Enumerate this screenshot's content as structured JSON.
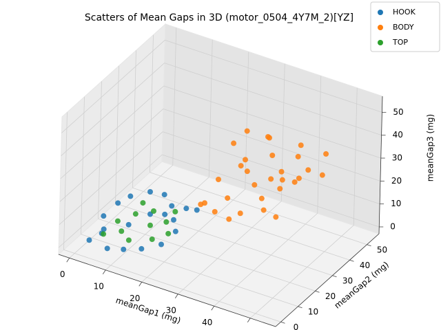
{
  "chart_data": {
    "type": "scatter3d",
    "title": "Scatters of Mean Gaps in 3D (motor_0504_4Y7M_2)[YZ]",
    "x_label": "meanGap1 (mg)",
    "y_label": "meanGap2 (mg)",
    "z_label": "meanGap3 (mg)",
    "xlim": [
      -3,
      57
    ],
    "ylim": [
      -3,
      57
    ],
    "zlim": [
      -3,
      57
    ],
    "xticks": [
      0,
      10,
      20,
      30,
      40,
      50
    ],
    "yticks": [
      0,
      10,
      20,
      30,
      40,
      50
    ],
    "zticks": [
      0,
      10,
      20,
      30,
      40,
      50
    ],
    "grid": true,
    "legend": "upper right",
    "series": [
      {
        "name": "HOOK",
        "color": "#1f77b4",
        "x": [
          3,
          5,
          4,
          6,
          8,
          12,
          15,
          18,
          20,
          22,
          20,
          16,
          12,
          8,
          10,
          14,
          18,
          6,
          22,
          24
        ],
        "y": [
          2,
          5,
          8,
          12,
          15,
          18,
          20,
          18,
          15,
          12,
          8,
          5,
          3,
          2,
          10,
          14,
          14,
          4,
          18,
          20
        ],
        "z": [
          3,
          5,
          10,
          14,
          16,
          18,
          17,
          15,
          12,
          10,
          6,
          4,
          3,
          2,
          8,
          12,
          14,
          8,
          16,
          15
        ]
      },
      {
        "name": "BODY",
        "color": "#ff7f0e",
        "x": [
          30,
          35,
          40,
          25,
          45,
          38,
          32,
          42,
          28,
          36,
          48,
          33,
          40,
          30,
          44,
          26,
          38,
          35,
          46,
          41,
          29,
          37,
          34,
          43,
          31,
          39,
          47,
          27,
          36,
          42
        ],
        "y": [
          25,
          30,
          35,
          20,
          40,
          28,
          32,
          30,
          22,
          38,
          42,
          26,
          25,
          35,
          36,
          28,
          40,
          22,
          30,
          44,
          30,
          33,
          27,
          39,
          24,
          31,
          46,
          18,
          36,
          28
        ],
        "z": [
          20,
          25,
          30,
          18,
          30,
          22,
          28,
          27,
          15,
          33,
          28,
          35,
          20,
          30,
          38,
          24,
          22,
          18,
          32,
          36,
          40,
          45,
          50,
          26,
          12,
          29,
          34,
          21,
          42,
          16
        ]
      },
      {
        "name": "TOP",
        "color": "#2ca02c",
        "x": [
          5,
          7,
          10,
          14,
          18,
          20,
          17,
          12,
          9,
          15,
          19,
          11
        ],
        "y": [
          6,
          10,
          14,
          16,
          15,
          12,
          9,
          6,
          8,
          12,
          18,
          16
        ],
        "z": [
          4,
          8,
          10,
          12,
          10,
          8,
          6,
          5,
          6,
          9,
          13,
          14
        ]
      }
    ]
  }
}
